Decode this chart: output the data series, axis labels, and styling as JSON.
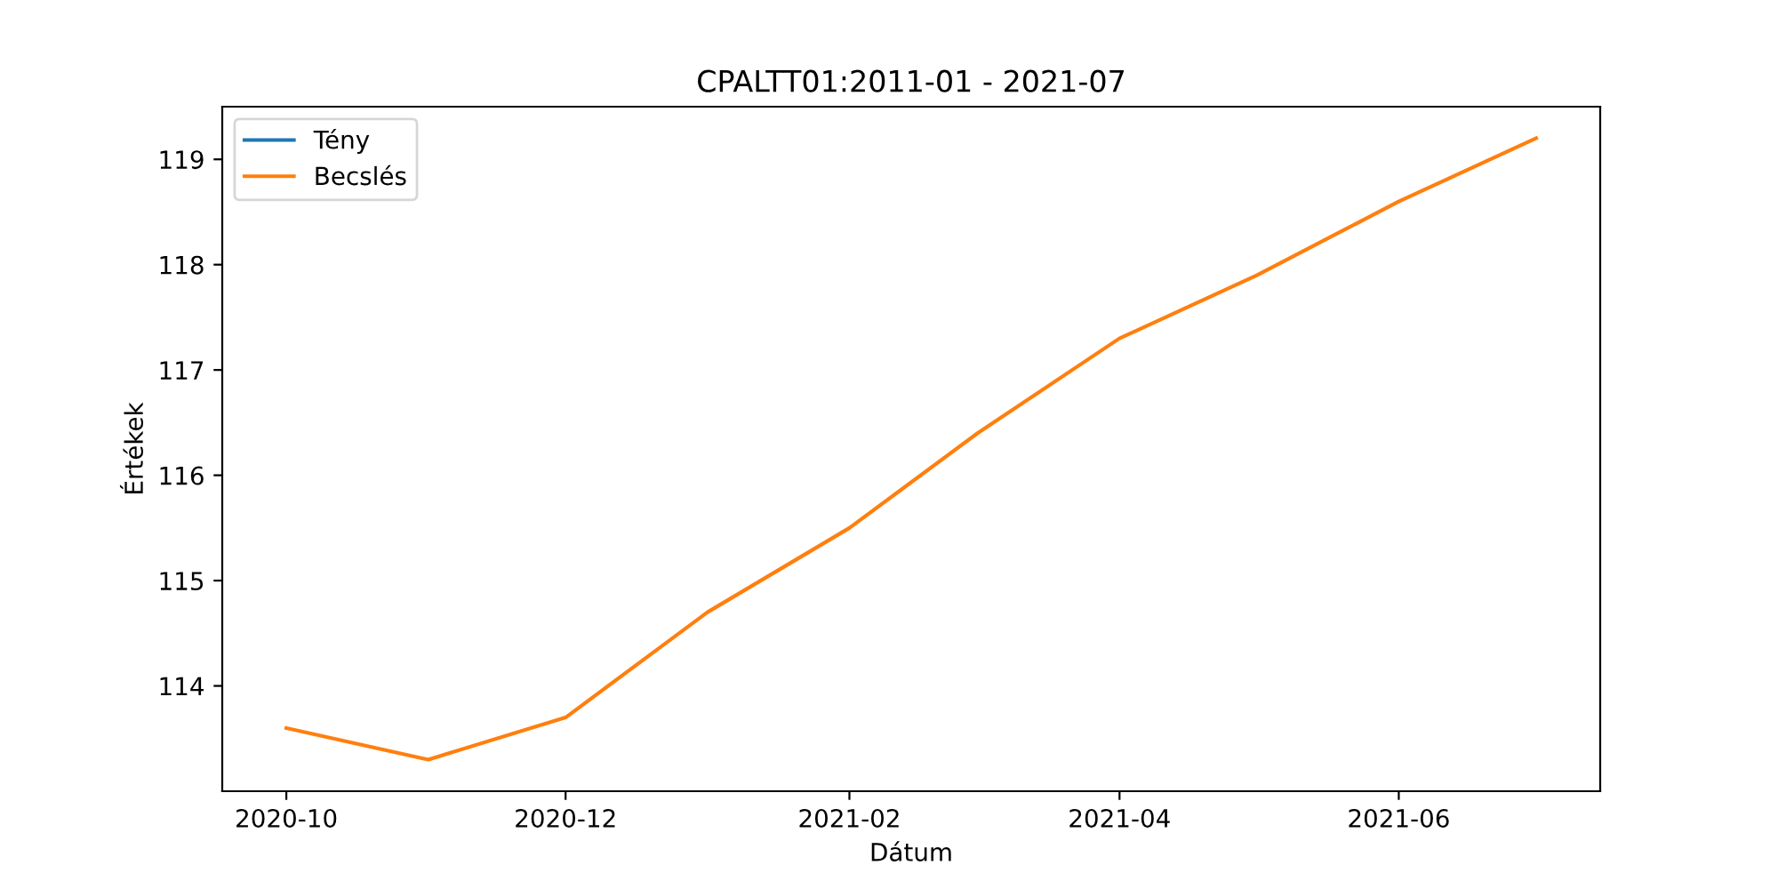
{
  "chart_data": {
    "type": "line",
    "title": "CPALTT01:2011-01 - 2021-07",
    "xlabel": "Dátum",
    "ylabel": "Értékek",
    "x": [
      "2020-10",
      "2020-11",
      "2020-12",
      "2021-01",
      "2021-02",
      "2021-03",
      "2021-04",
      "2021-05",
      "2021-06",
      "2021-07"
    ],
    "series": [
      {
        "name": "Tény",
        "color": "#1f77b4",
        "values": [
          null,
          null,
          null,
          null,
          null,
          null,
          null,
          null,
          null,
          null
        ]
      },
      {
        "name": "Becslés",
        "color": "#ff7f0e",
        "values": [
          113.6,
          113.3,
          113.7,
          114.7,
          115.5,
          116.4,
          117.3,
          117.9,
          118.6,
          119.2
        ]
      }
    ],
    "xlim": [
      "2020-09-17",
      "2021-07-15"
    ],
    "xticks": [
      "2020-10",
      "2020-12",
      "2021-02",
      "2021-04",
      "2021-06"
    ],
    "ylim": [
      113.0,
      119.5
    ],
    "yticks": [
      114,
      115,
      116,
      117,
      118,
      119
    ],
    "grid": false,
    "legend": "top left",
    "marker": "none",
    "line_style": "solid"
  }
}
